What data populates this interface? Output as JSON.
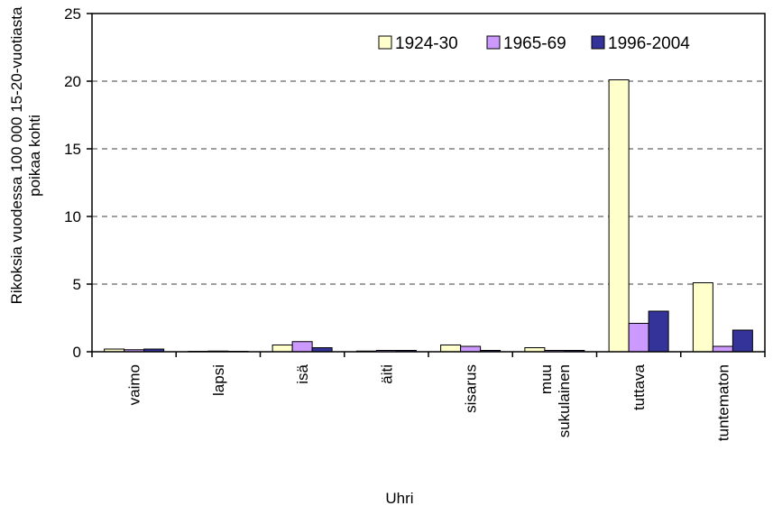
{
  "chart_data": {
    "type": "bar",
    "xlabel": "Uhri",
    "ylabel_lines": [
      "Rikoksia vuodessa 100 000 15-20-vuotiasta",
      "poikaa kohti"
    ],
    "ylim": [
      0,
      25
    ],
    "yticks": [
      0,
      5,
      10,
      15,
      20,
      25
    ],
    "grid": true,
    "legend_placement": "top-right",
    "categories": [
      [
        "vaimo"
      ],
      [
        "lapsi"
      ],
      [
        "isä"
      ],
      [
        "äiti"
      ],
      [
        "sisarus"
      ],
      [
        "muu",
        "sukulainen"
      ],
      [
        "tuttava"
      ],
      [
        "tuntematon"
      ]
    ],
    "series": [
      {
        "name": "1924-30",
        "color": "#ffffcc",
        "values": [
          0.2,
          0.0,
          0.5,
          0.05,
          0.5,
          0.3,
          20.1,
          5.1
        ]
      },
      {
        "name": "1965-69",
        "color": "#cc99ff",
        "values": [
          0.15,
          0.05,
          0.75,
          0.1,
          0.4,
          0.1,
          2.1,
          0.4
        ]
      },
      {
        "name": "1996-2004",
        "color": "#333399",
        "values": [
          0.2,
          0.0,
          0.3,
          0.1,
          0.1,
          0.1,
          3.0,
          1.6
        ]
      }
    ]
  }
}
